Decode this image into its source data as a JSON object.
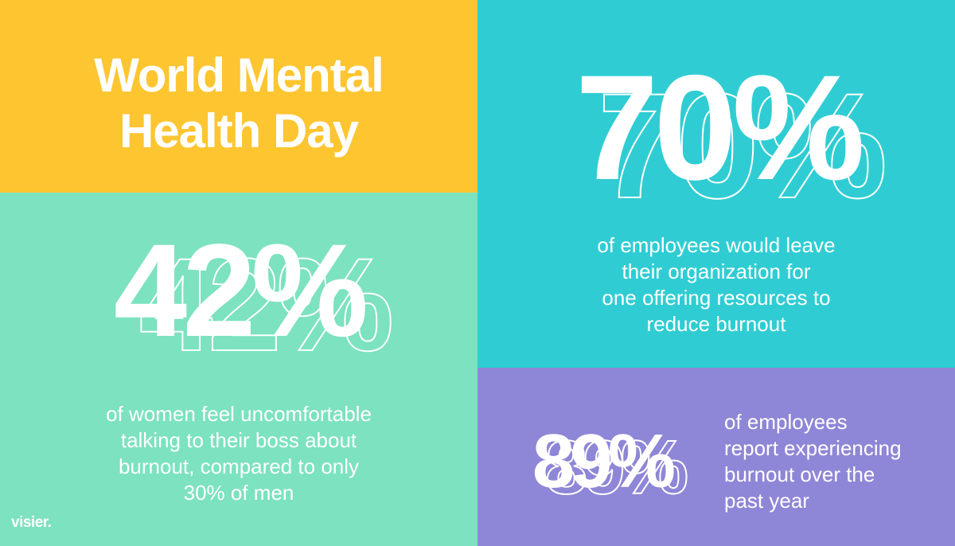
{
  "colors": {
    "title_bg": "#FDC530",
    "panel_42_bg": "#7CE2BF",
    "panel_70_bg": "#2FCDD3",
    "panel_89_bg": "#8E86D6",
    "text": "#FFFFFF"
  },
  "title": {
    "line1": "World Mental",
    "line2": "Health Day"
  },
  "stats": [
    {
      "value": "42%",
      "caption": [
        "of women feel uncomfortable",
        "talking to their boss about",
        "burnout, compared to only",
        "30% of men"
      ]
    },
    {
      "value": "70%",
      "caption": [
        "of employees would leave",
        "their organization for",
        "one offering resources to",
        "reduce burnout"
      ]
    },
    {
      "value": "89%",
      "caption": [
        "of employees",
        "report experiencing",
        "burnout over the",
        "past year"
      ]
    }
  ],
  "brand": {
    "logo": "visier."
  }
}
